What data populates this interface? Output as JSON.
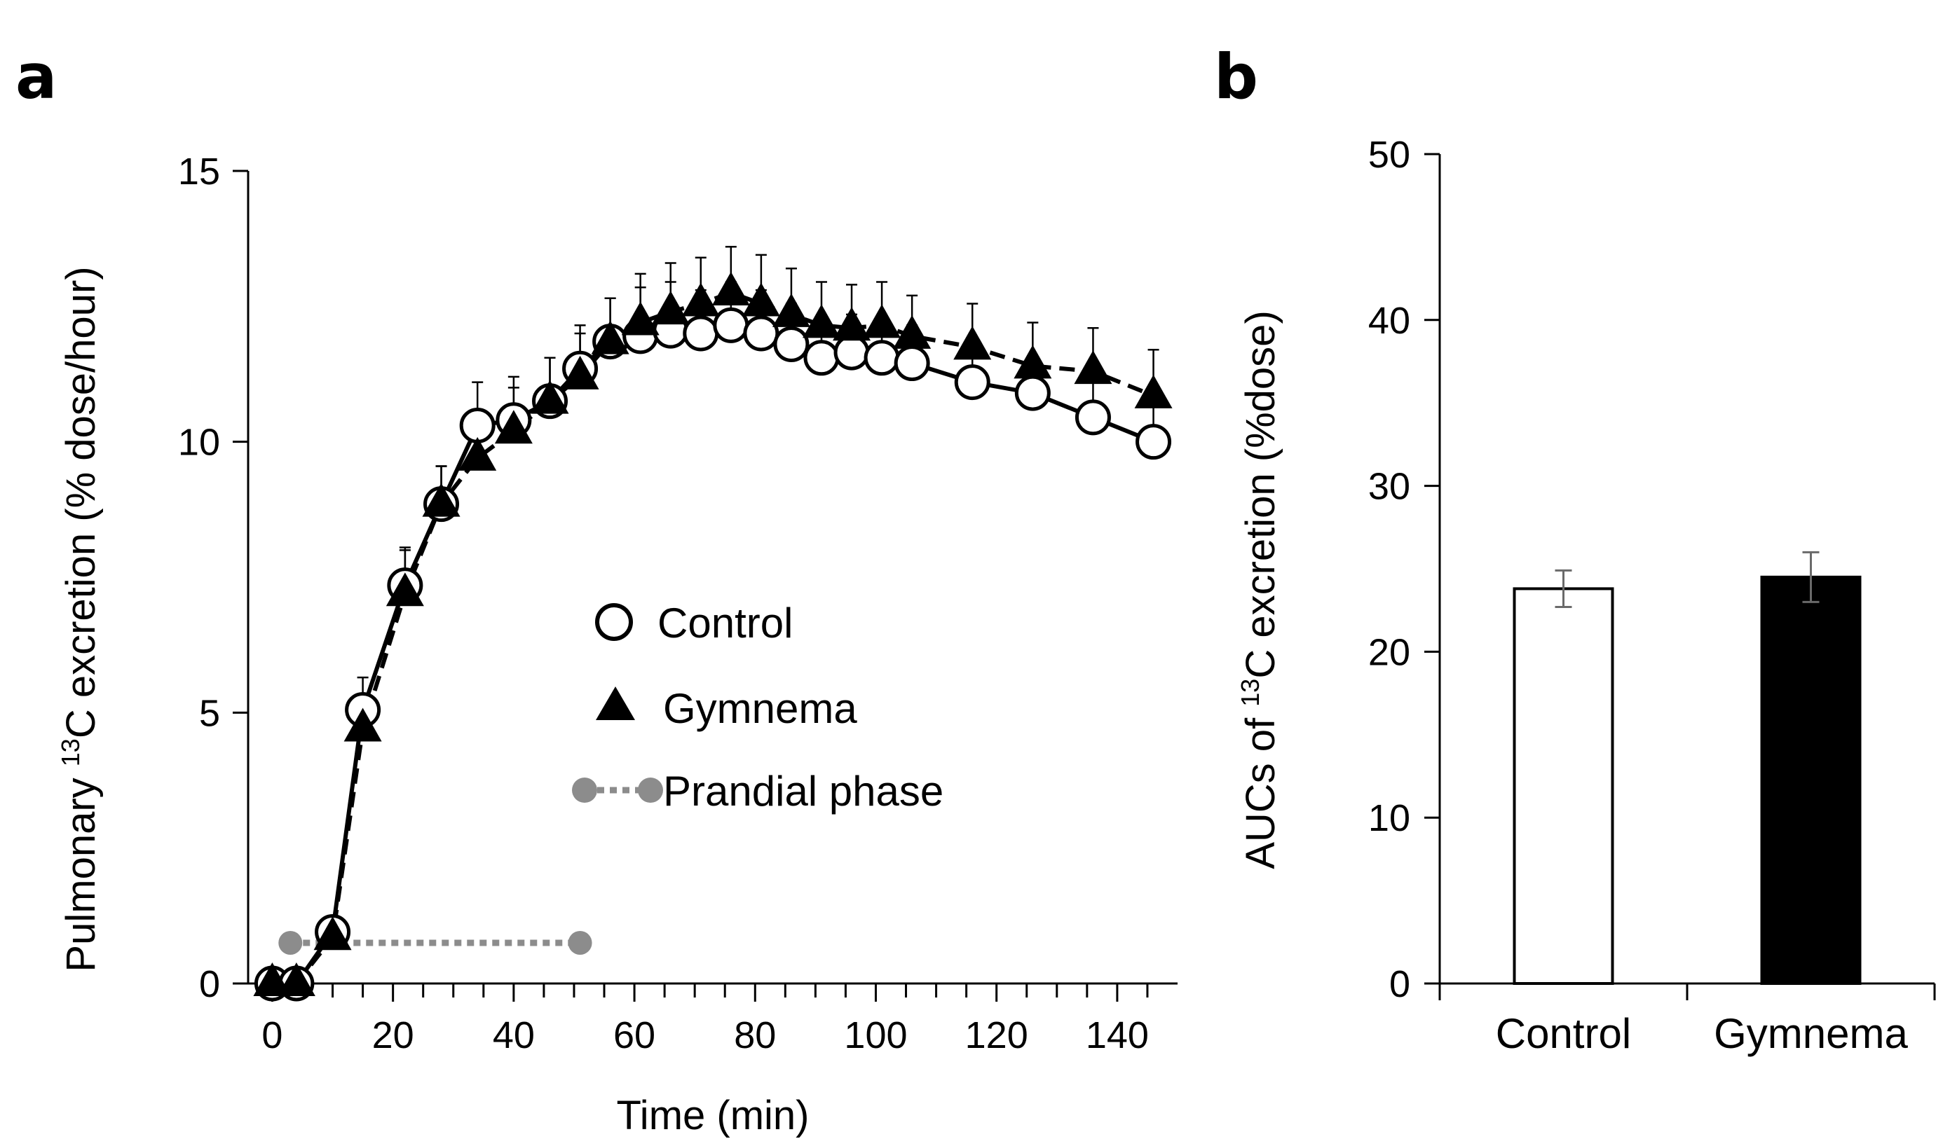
{
  "chart_data": [
    {
      "panel": "a",
      "type": "line",
      "xlabel": "Time (min)",
      "ylabel_prefix": "Pulmonary ",
      "ylabel_sup": "13",
      "ylabel_suffix": "C excretion (% dose/hour)",
      "xlim": [
        -4,
        150
      ],
      "ylim": [
        0,
        15
      ],
      "xticks": [
        0,
        20,
        40,
        60,
        80,
        100,
        120,
        140
      ],
      "yticks": [
        0,
        5,
        10,
        15
      ],
      "minor_xtick_step": 5,
      "series": [
        {
          "name": "Control",
          "marker": "open-circle",
          "line": "solid",
          "x": [
            0,
            4,
            10,
            15,
            22,
            28,
            34,
            40,
            46,
            51,
            56,
            61,
            66,
            71,
            76,
            81,
            86,
            91,
            96,
            101,
            106,
            116,
            126,
            136,
            146
          ],
          "y": [
            0,
            0,
            0.95,
            5.05,
            7.35,
            8.85,
            10.3,
            10.4,
            10.75,
            11.35,
            11.85,
            11.95,
            12.05,
            12.0,
            12.15,
            12.0,
            11.8,
            11.55,
            11.65,
            11.55,
            11.45,
            11.1,
            10.9,
            10.45,
            10.0
          ],
          "err": [
            0,
            0,
            0.1,
            0.6,
            0.7,
            0.7,
            0.8,
            0.8,
            0.8,
            0.8,
            0.8,
            0.9,
            0.9,
            0.8,
            0.8,
            0.8,
            0.75,
            0.7,
            0.7,
            0.7,
            0.7,
            0.65,
            0.65,
            0.65,
            0.65
          ]
        },
        {
          "name": "Gymnema",
          "marker": "filled-triangle",
          "line": "dashed",
          "x": [
            0,
            4,
            10,
            15,
            22,
            28,
            34,
            40,
            46,
            51,
            56,
            61,
            66,
            71,
            76,
            81,
            86,
            91,
            96,
            101,
            106,
            116,
            126,
            136,
            146
          ],
          "y": [
            0,
            0,
            0.85,
            4.7,
            7.2,
            8.85,
            9.7,
            10.2,
            10.75,
            11.2,
            11.85,
            12.2,
            12.4,
            12.55,
            12.75,
            12.55,
            12.35,
            12.15,
            12.1,
            12.15,
            11.95,
            11.75,
            11.4,
            11.3,
            10.85
          ],
          "err": [
            0,
            0,
            0.1,
            0.6,
            0.8,
            0.7,
            0.8,
            0.8,
            0.8,
            0.8,
            0.8,
            0.9,
            0.9,
            0.85,
            0.85,
            0.9,
            0.85,
            0.8,
            0.8,
            0.8,
            0.75,
            0.8,
            0.8,
            0.8,
            0.85
          ]
        }
      ],
      "prandial_phase": {
        "name": "Prandial phase",
        "x_start": 3,
        "x_end": 51,
        "y": 0.75
      },
      "legend": [
        "Control",
        "Gymnema",
        "Prandial phase"
      ],
      "legend_position": "center"
    },
    {
      "panel": "b",
      "type": "bar",
      "categories": [
        "Control",
        "Gymnema"
      ],
      "values": [
        23.8,
        24.5
      ],
      "errors": [
        1.1,
        1.5
      ],
      "bar_colors": [
        "#ffffff",
        "#000000"
      ],
      "ylabel_prefix": "AUCs of ",
      "ylabel_sup": "13",
      "ylabel_suffix": "C excretion (%dose)",
      "ylim": [
        0,
        50
      ],
      "yticks": [
        0,
        10,
        20,
        30,
        40,
        50
      ]
    }
  ],
  "colors": {
    "axis": "#000000",
    "prandial": "#8c8c8c",
    "errorbar_b": "#6a6a6a"
  }
}
